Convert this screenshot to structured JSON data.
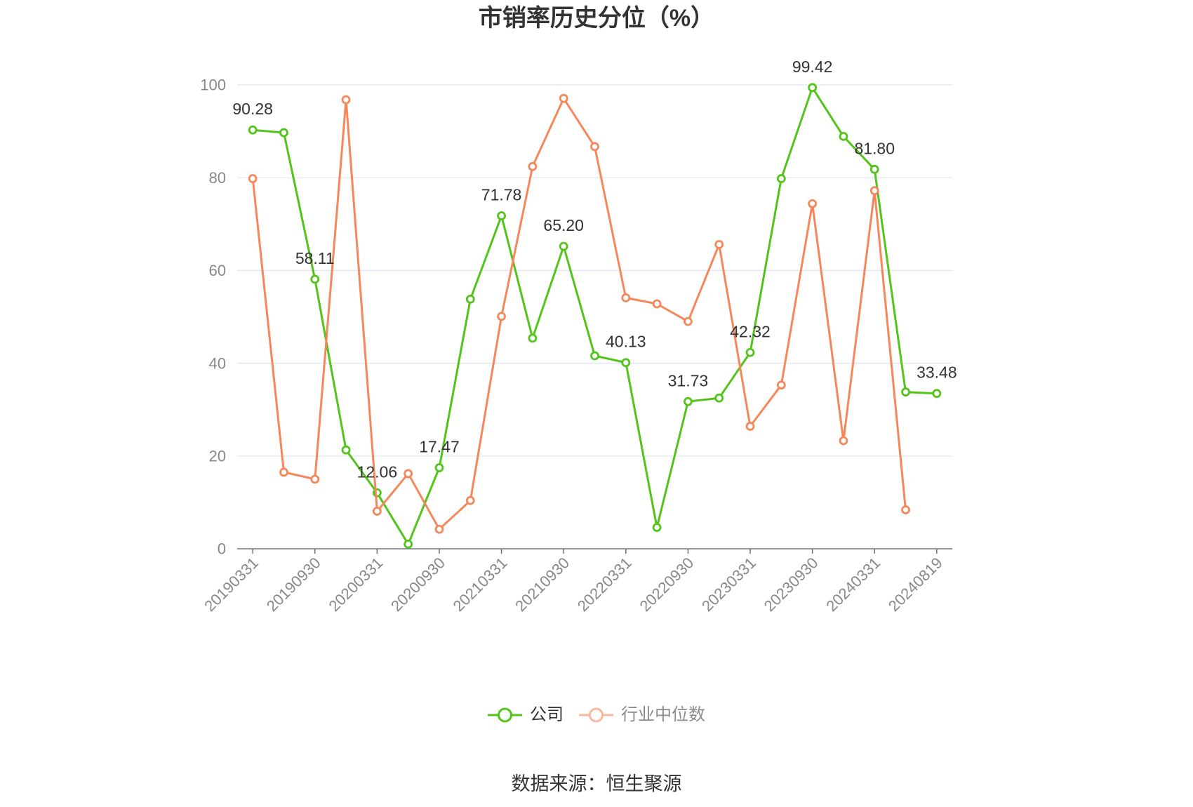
{
  "source": "数据来源：恒生聚源",
  "chart_data": {
    "type": "line",
    "title": "市销率历史分位（%）",
    "categories": [
      "20190331",
      "",
      "20190930",
      "",
      "20200331",
      "",
      "20200930",
      "",
      "20210331",
      "",
      "20210930",
      "",
      "20220331",
      "",
      "20220930",
      "",
      "20230331",
      "",
      "20230930",
      "",
      "20240331",
      "",
      "20240819"
    ],
    "ylim": [
      0,
      100
    ],
    "yticks": [
      0,
      20,
      40,
      60,
      80,
      100
    ],
    "grid": true,
    "legend_position": "bottom",
    "series": [
      {
        "name": "公司",
        "color": "#52c41a",
        "values": [
          90.28,
          89.7,
          58.11,
          21.3,
          12.06,
          1.0,
          17.47,
          53.8,
          71.78,
          45.4,
          65.2,
          41.6,
          40.13,
          4.6,
          31.73,
          32.5,
          42.32,
          79.8,
          99.42,
          88.9,
          81.8,
          33.8,
          33.48
        ],
        "value_labels": {
          "0": "90.28",
          "2": "58.11",
          "4": "12.06",
          "6": "17.47",
          "8": "71.78",
          "10": "65.20",
          "12": "40.13",
          "14": "31.73",
          "16": "42.32",
          "18": "99.42",
          "20": "81.80",
          "22": "33.48"
        }
      },
      {
        "name": "行业中位数",
        "color": "#f5875b",
        "values": [
          79.8,
          16.5,
          15.0,
          96.8,
          8.1,
          16.2,
          4.2,
          10.4,
          50.1,
          82.4,
          97.1,
          86.7,
          54.1,
          52.8,
          49.0,
          65.6,
          26.4,
          35.3,
          74.4,
          23.3,
          77.2,
          8.4,
          null
        ]
      }
    ],
    "legend_icon_colors": [
      "#52c41a",
      "#f8b89d"
    ]
  }
}
